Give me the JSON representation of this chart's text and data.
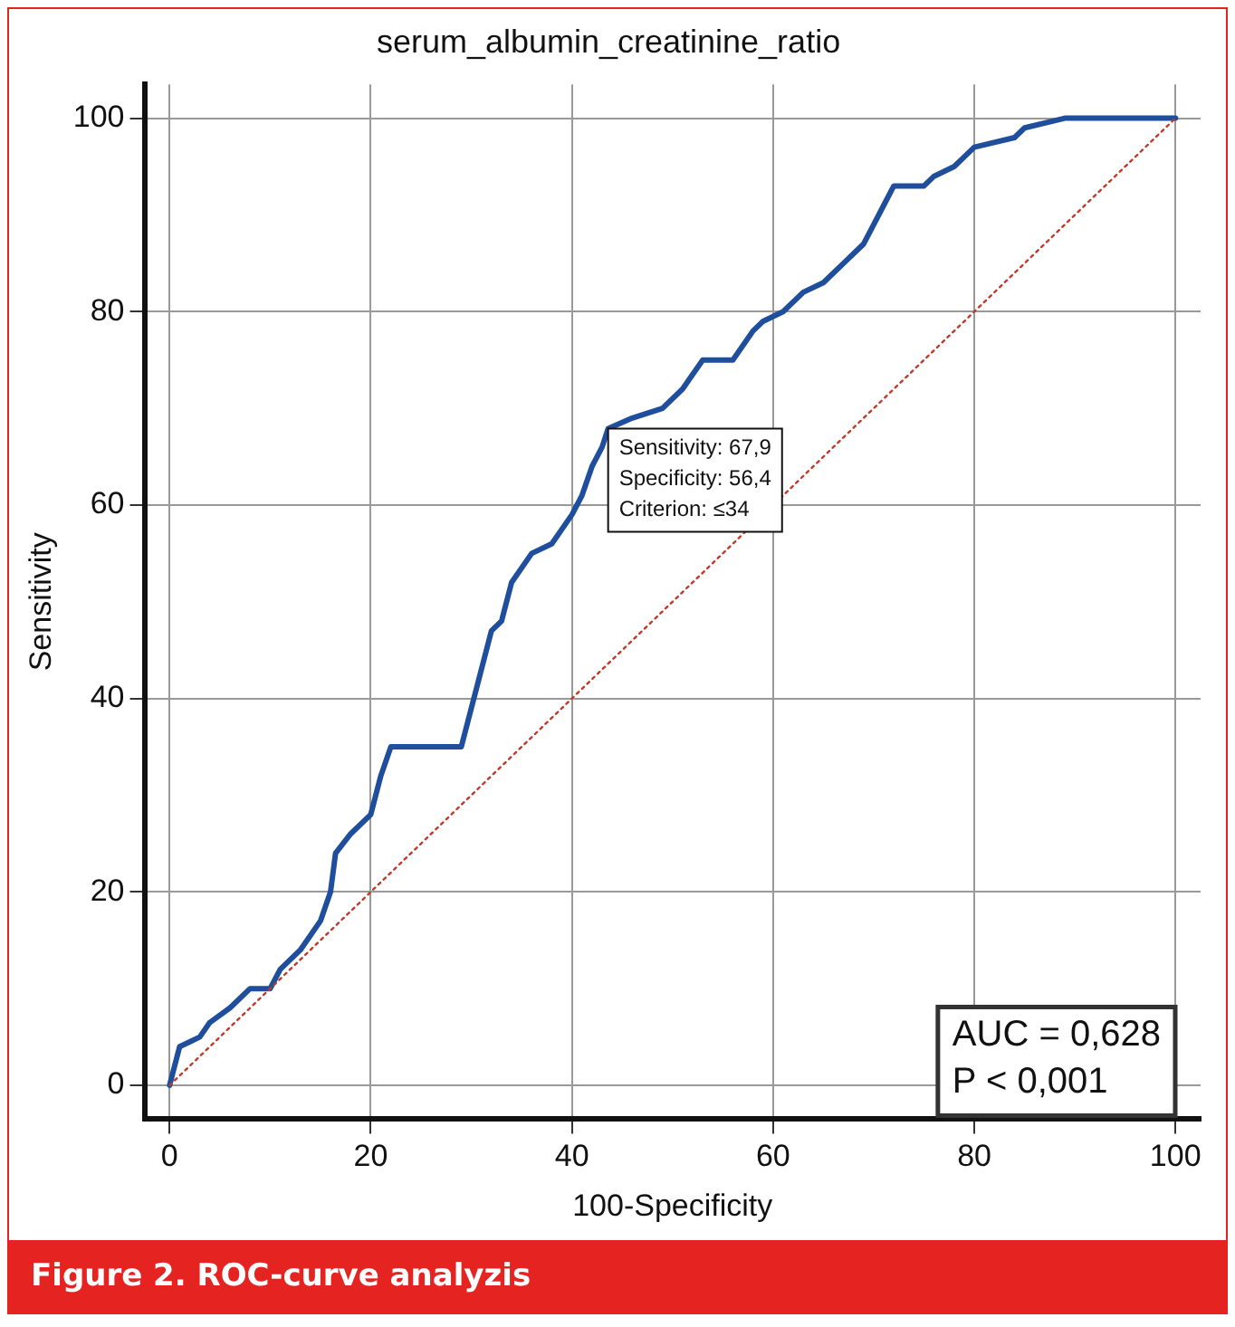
{
  "chart_data": {
    "type": "line",
    "title": "serum_albumin_creatinine_ratio",
    "xlabel": "100-Specificity",
    "ylabel": "Sensitivity",
    "xlim": [
      -2.5,
      102.5
    ],
    "ylim": [
      -3.5,
      103.5
    ],
    "xticks": [
      0,
      20,
      40,
      60,
      80,
      100
    ],
    "yticks": [
      0,
      20,
      40,
      60,
      80,
      100
    ],
    "grid": true,
    "legend": false,
    "marker": "none",
    "series": [
      {
        "color": "#1f4e9c",
        "line_style": "solid",
        "x": [
          0,
          1,
          2,
          3,
          4,
          6,
          8,
          10,
          11,
          13,
          15,
          16,
          16.5,
          18,
          20,
          21,
          22,
          29,
          30,
          31,
          32,
          33,
          34,
          36,
          38,
          40,
          41,
          42,
          43,
          43.6,
          46,
          49,
          51,
          53,
          56,
          58,
          59,
          61,
          63,
          65,
          67,
          69,
          70,
          71,
          72,
          75,
          76,
          78,
          79,
          80,
          84,
          85,
          89,
          100
        ],
        "values": [
          0,
          4,
          4.5,
          5,
          6.5,
          8,
          10,
          10,
          12,
          14,
          17,
          20,
          24,
          26,
          28,
          32,
          35,
          35,
          39,
          43,
          47,
          48,
          52,
          55,
          56,
          59,
          61,
          64,
          66,
          67.9,
          69,
          70,
          72,
          75,
          75,
          78,
          79,
          80,
          82,
          83,
          85,
          87,
          89,
          91,
          93,
          93,
          94,
          95,
          96,
          97,
          98,
          99,
          100,
          100
        ]
      },
      {
        "color": "#c0392b",
        "line_style": "dotted",
        "x": [
          0,
          100
        ],
        "values": [
          0,
          100
        ]
      }
    ],
    "annotations": [
      {
        "text": "Sensitivity: 67,9\nSpecificity: 56,4\nCriterion: ≤34",
        "x": 43.6,
        "y": 67.9
      },
      "AUC = 0,628\nP < 0,001",
      "Figure 2. ROC-curve analyzis"
    ]
  }
}
